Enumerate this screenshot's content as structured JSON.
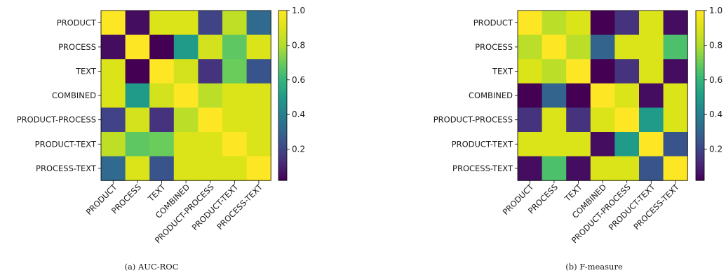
{
  "chart_data": [
    {
      "type": "heatmap",
      "caption": "(a) AUC-ROC",
      "rows": [
        "PRODUCT",
        "PROCESS",
        "TEXT",
        "COMBINED",
        "PRODUCT-PROCESS",
        "PRODUCT-TEXT",
        "PROCESS-TEXT"
      ],
      "cols": [
        "PRODUCT",
        "PROCESS",
        "TEXT",
        "COMBINED",
        "PRODUCT-PROCESS",
        "PRODUCT-TEXT",
        "PROCESS-TEXT"
      ],
      "values": [
        [
          1.0,
          0.05,
          0.9,
          0.9,
          0.2,
          0.83,
          0.32
        ],
        [
          0.05,
          1.0,
          0.02,
          0.5,
          0.88,
          0.68,
          0.9
        ],
        [
          0.9,
          0.02,
          1.0,
          0.88,
          0.15,
          0.7,
          0.25
        ],
        [
          0.9,
          0.5,
          0.88,
          1.0,
          0.82,
          0.9,
          0.9
        ],
        [
          0.2,
          0.88,
          0.15,
          0.82,
          1.0,
          0.9,
          0.9
        ],
        [
          0.83,
          0.68,
          0.7,
          0.9,
          0.9,
          1.0,
          0.9
        ],
        [
          0.32,
          0.9,
          0.25,
          0.9,
          0.9,
          0.9,
          1.0
        ]
      ],
      "colorbar": {
        "range": [
          0.02,
          1.0
        ],
        "ticks": [
          "0.2",
          "0.4",
          "0.6",
          "0.8",
          "1.0"
        ],
        "colormap": "viridis"
      }
    },
    {
      "type": "heatmap",
      "caption": "(b) F-measure",
      "rows": [
        "PRODUCT",
        "PROCESS",
        "TEXT",
        "COMBINED",
        "PRODUCT-PROCESS",
        "PRODUCT-TEXT",
        "PROCESS-TEXT"
      ],
      "cols": [
        "PRODUCT",
        "PROCESS",
        "TEXT",
        "COMBINED",
        "PRODUCT-PROCESS",
        "PRODUCT-TEXT",
        "PROCESS-TEXT"
      ],
      "values": [
        [
          1.0,
          0.82,
          0.9,
          0.02,
          0.15,
          0.9,
          0.05
        ],
        [
          0.82,
          1.0,
          0.82,
          0.3,
          0.9,
          0.9,
          0.65
        ],
        [
          0.9,
          0.82,
          1.0,
          0.02,
          0.15,
          0.9,
          0.05
        ],
        [
          0.02,
          0.3,
          0.02,
          1.0,
          0.9,
          0.05,
          0.9
        ],
        [
          0.15,
          0.9,
          0.15,
          0.9,
          1.0,
          0.5,
          0.9
        ],
        [
          0.9,
          0.9,
          0.9,
          0.05,
          0.5,
          1.0,
          0.25
        ],
        [
          0.05,
          0.65,
          0.05,
          0.9,
          0.9,
          0.25,
          1.0
        ]
      ],
      "colorbar": {
        "range": [
          0.02,
          1.0
        ],
        "ticks": [
          "0.2",
          "0.4",
          "0.6",
          "0.8",
          "1.0"
        ],
        "colormap": "viridis"
      }
    }
  ]
}
